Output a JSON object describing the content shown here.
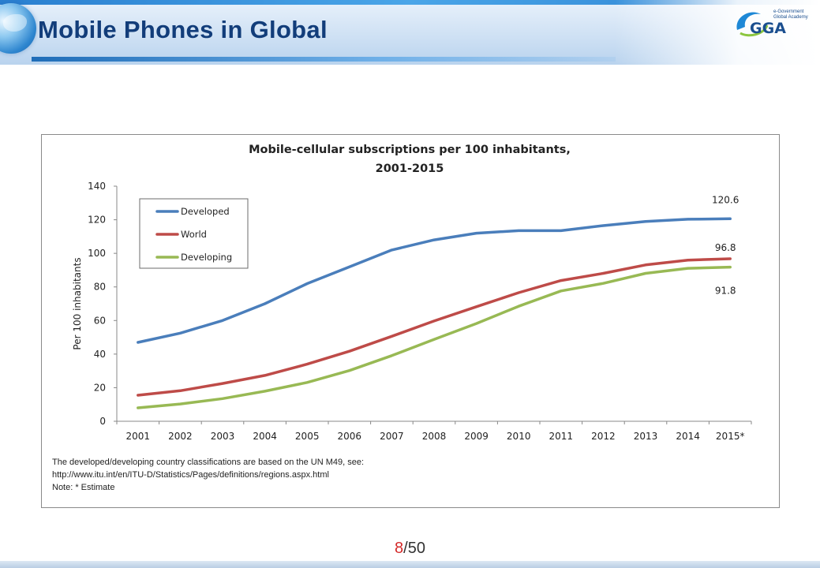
{
  "header": {
    "title": "Mobile Phones in Global",
    "logo_text": "GGA",
    "logo_sub": "e-Government Global Academy"
  },
  "chart_data": {
    "type": "line",
    "title_line1": "Mobile-cellular subscriptions per 100 inhabitants,",
    "title_line2": "2001-2015",
    "xlabel": "",
    "ylabel": "Per 100 inhabitants",
    "ylim": [
      0,
      140
    ],
    "yticks": [
      "0",
      "20",
      "40",
      "60",
      "80",
      "100",
      "120",
      "140"
    ],
    "categories": [
      "2001",
      "2002",
      "2003",
      "2004",
      "2005",
      "2006",
      "2007",
      "2008",
      "2009",
      "2010",
      "2011",
      "2012",
      "2013",
      "2014",
      "2015*"
    ],
    "grid": false,
    "legend_position": "top-left",
    "series": [
      {
        "name": "Developed",
        "color": "#4a7ebb",
        "values": [
          47,
          52.5,
          60,
          70,
          82,
          92,
          102,
          108,
          112,
          113.5,
          113.5,
          116.5,
          119,
          120.3,
          120.6
        ],
        "end_label": "120.6"
      },
      {
        "name": "World",
        "color": "#be4b48",
        "values": [
          15.5,
          18.2,
          22.5,
          27.3,
          34,
          41.7,
          50.6,
          59.7,
          68.2,
          76.6,
          83.8,
          88.1,
          93.1,
          96,
          96.8
        ],
        "end_label": "96.8"
      },
      {
        "name": "Developing",
        "color": "#98b954",
        "values": [
          8,
          10.3,
          13.5,
          17.9,
          23.1,
          30.2,
          39.1,
          48.7,
          58.2,
          68.5,
          77.6,
          82.1,
          88.1,
          91.1,
          91.8
        ],
        "end_label": "91.8"
      }
    ]
  },
  "notes": {
    "line1": "The developed/developing  country classifications are based on the UN M49, see:",
    "line2": "http://www.itu.int/en/ITU-D/Statistics/Pages/definitions/regions.aspx.html",
    "line3": "Note: * Estimate"
  },
  "pagination": {
    "current": "8",
    "total": "/50"
  }
}
